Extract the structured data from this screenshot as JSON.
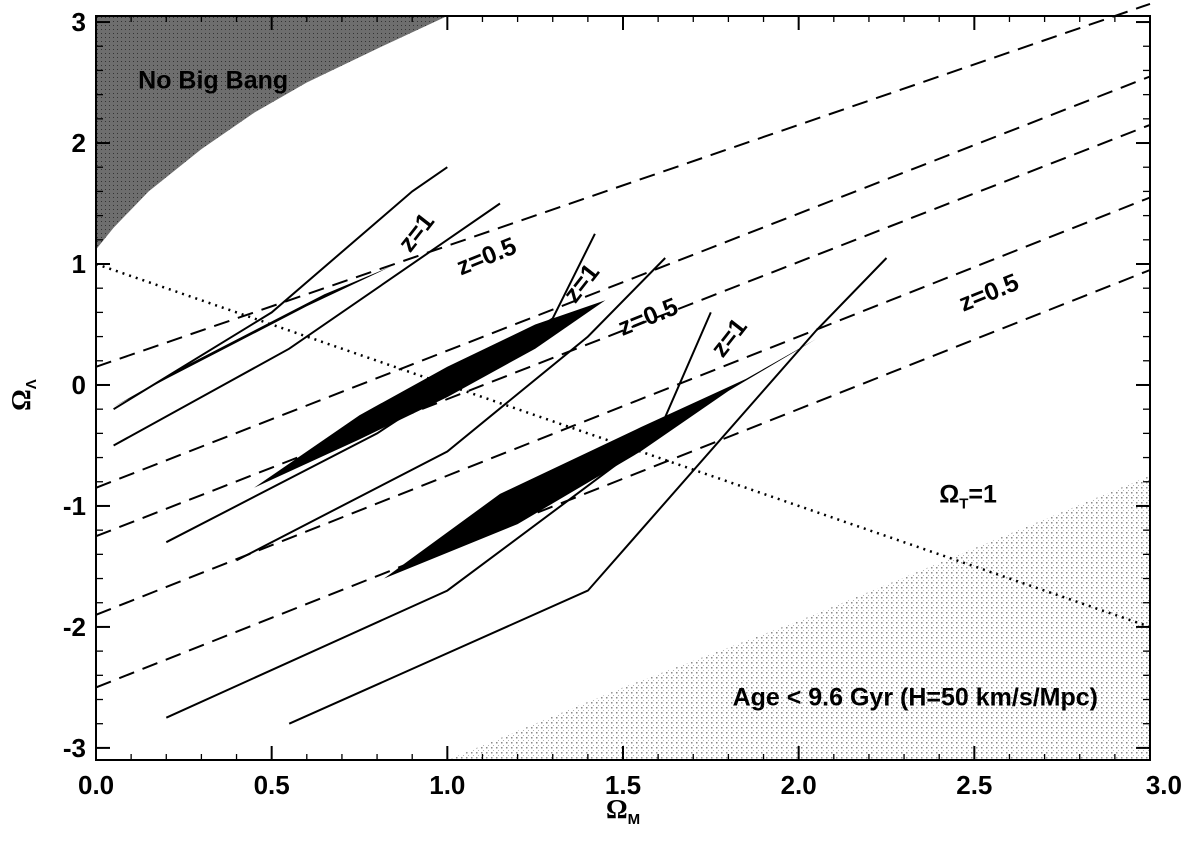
{
  "chart_data": {
    "type": "line",
    "xlabel": "Ω",
    "xlabel_sub": "M",
    "ylabel": "Ω",
    "ylabel_sub": "Λ",
    "xlim": [
      0.0,
      3.0
    ],
    "ylim": [
      -3.1,
      3.05
    ],
    "x_ticks": [
      "0.0",
      "0.5",
      "1.0",
      "1.5",
      "2.0",
      "2.5",
      "3.0"
    ],
    "y_ticks": [
      "-3",
      "-2",
      "-1",
      "0",
      "1",
      "2",
      "3"
    ],
    "grid": false,
    "colors": {
      "ink": "#000000",
      "no_big_bang_fill": "#6e6e6e",
      "age_fill": "#bdbdbd"
    },
    "regions": [
      {
        "name": "No Big Bang",
        "label": "No Big Bang",
        "boundary": [
          [
            0.0,
            1.12
          ],
          [
            0.05,
            1.3
          ],
          [
            0.15,
            1.6
          ],
          [
            0.3,
            1.95
          ],
          [
            0.45,
            2.25
          ],
          [
            0.6,
            2.5
          ],
          [
            0.8,
            2.78
          ],
          [
            1.0,
            3.05
          ]
        ]
      },
      {
        "name": "Age limit",
        "label": "Age < 9.6 Gyr (H=50 km/s/Mpc)",
        "boundary": [
          [
            1.0,
            -3.1
          ],
          [
            1.5,
            -2.5
          ],
          [
            2.0,
            -1.95
          ],
          [
            2.5,
            -1.35
          ],
          [
            3.0,
            -0.75
          ]
        ]
      }
    ],
    "flat_universe_line": {
      "label_main": "Ω",
      "label_sub": "T",
      "label_suffix": "=1",
      "points": [
        [
          0.0,
          1.0
        ],
        [
          3.0,
          -2.0
        ]
      ]
    },
    "series": [
      {
        "style": "solid",
        "points": [
          [
            0.05,
            -0.2
          ],
          [
            0.5,
            0.6
          ],
          [
            0.9,
            1.6
          ],
          [
            1.0,
            1.8
          ]
        ]
      },
      {
        "style": "solid",
        "points": [
          [
            0.05,
            -0.5
          ],
          [
            0.55,
            0.3
          ],
          [
            1.0,
            1.2
          ],
          [
            1.15,
            1.5
          ]
        ]
      },
      {
        "style": "solid",
        "points": [
          [
            0.2,
            -1.3
          ],
          [
            0.8,
            -0.4
          ],
          [
            1.3,
            0.55
          ],
          [
            1.42,
            1.25
          ]
        ]
      },
      {
        "style": "solid",
        "points": [
          [
            0.4,
            -1.45
          ],
          [
            1.0,
            -0.55
          ],
          [
            1.4,
            0.4
          ],
          [
            1.62,
            1.05
          ]
        ]
      },
      {
        "style": "solid",
        "points": [
          [
            0.2,
            -2.75
          ],
          [
            1.0,
            -1.7
          ],
          [
            1.6,
            -0.4
          ],
          [
            1.75,
            0.6
          ]
        ]
      },
      {
        "style": "solid",
        "points": [
          [
            0.55,
            -2.8
          ],
          [
            1.4,
            -1.7
          ],
          [
            2.05,
            0.45
          ],
          [
            2.25,
            1.05
          ]
        ]
      },
      {
        "style": "dashed",
        "points": [
          [
            0.0,
            0.15
          ],
          [
            3.0,
            3.15
          ]
        ]
      },
      {
        "style": "dashed",
        "points": [
          [
            0.0,
            -0.85
          ],
          [
            3.0,
            2.55
          ]
        ]
      },
      {
        "style": "dashed",
        "points": [
          [
            0.0,
            -1.25
          ],
          [
            3.0,
            2.15
          ]
        ]
      },
      {
        "style": "dashed",
        "points": [
          [
            0.0,
            -1.9
          ],
          [
            3.0,
            1.55
          ]
        ]
      },
      {
        "style": "dashed",
        "points": [
          [
            0.0,
            -2.5
          ],
          [
            3.0,
            0.95
          ]
        ]
      }
    ],
    "confidence_regions": [
      {
        "points": [
          [
            0.05,
            -0.18
          ],
          [
            0.2,
            0.05
          ],
          [
            0.4,
            0.35
          ],
          [
            0.6,
            0.65
          ],
          [
            0.84,
            0.98
          ],
          [
            0.65,
            0.75
          ],
          [
            0.45,
            0.45
          ],
          [
            0.25,
            0.15
          ]
        ]
      },
      {
        "points": [
          [
            0.45,
            -0.85
          ],
          [
            0.75,
            -0.45
          ],
          [
            1.0,
            -0.1
          ],
          [
            1.25,
            0.3
          ],
          [
            1.45,
            0.7
          ],
          [
            1.25,
            0.5
          ],
          [
            1.0,
            0.15
          ],
          [
            0.75,
            -0.25
          ]
        ]
      },
      {
        "points": [
          [
            0.82,
            -1.6
          ],
          [
            1.2,
            -1.15
          ],
          [
            1.55,
            -0.55
          ],
          [
            1.8,
            -0.05
          ],
          [
            2.05,
            0.38
          ],
          [
            1.85,
            0.05
          ],
          [
            1.55,
            -0.35
          ],
          [
            1.15,
            -0.9
          ]
        ]
      }
    ],
    "annotations": [
      {
        "text": "z=1",
        "x": 0.93,
        "y": 1.22,
        "angle": 52
      },
      {
        "text": "z=0.5",
        "x": 1.12,
        "y": 1.0,
        "angle": 22
      },
      {
        "text": "z=1",
        "x": 1.4,
        "y": 0.8,
        "angle": 52
      },
      {
        "text": "z=0.5",
        "x": 1.58,
        "y": 0.5,
        "angle": 22
      },
      {
        "text": "z=1",
        "x": 1.82,
        "y": 0.35,
        "angle": 52
      },
      {
        "text": "z=0.5",
        "x": 2.55,
        "y": 0.7,
        "angle": 22
      }
    ]
  }
}
